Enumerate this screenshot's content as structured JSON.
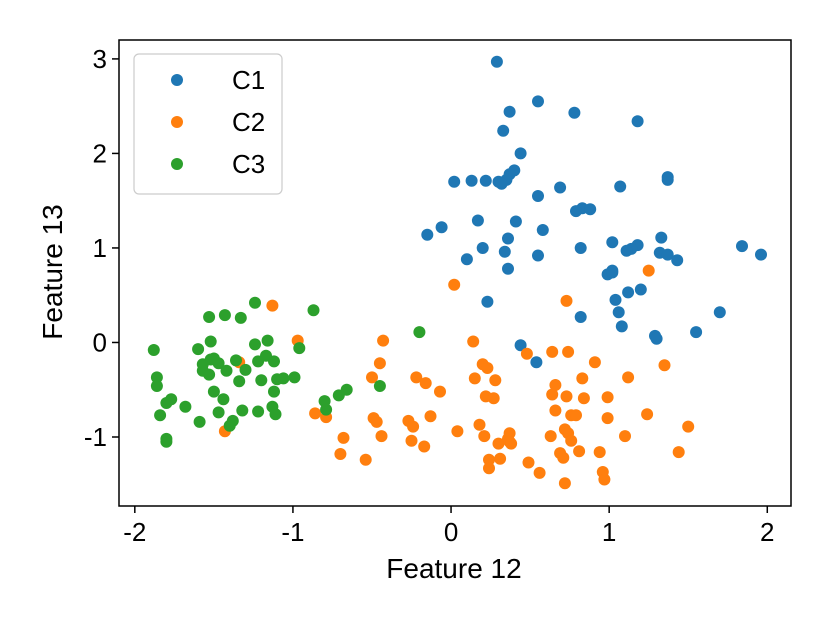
{
  "chart_data": {
    "type": "scatter",
    "xlabel": "Feature 12",
    "ylabel": "Feature 13",
    "xlim": [
      -2.1,
      2.15
    ],
    "ylim": [
      -1.73,
      3.2
    ],
    "xticks": [
      -2,
      -1,
      0,
      1,
      2
    ],
    "xtick_labels": [
      "-2",
      "-1",
      "0",
      "1",
      "2"
    ],
    "yticks": [
      -1,
      0,
      1,
      2,
      3
    ],
    "ytick_labels": [
      "-1",
      "0",
      "1",
      "2",
      "3"
    ],
    "grid": false,
    "legend_position": "top-left",
    "series": [
      {
        "name": "C1",
        "color": "#1f77b4",
        "points": [
          [
            0.29,
            2.97
          ],
          [
            0.55,
            2.55
          ],
          [
            0.37,
            2.44
          ],
          [
            0.78,
            2.43
          ],
          [
            1.18,
            2.34
          ],
          [
            0.33,
            2.24
          ],
          [
            0.44,
            2.0
          ],
          [
            0.4,
            1.82
          ],
          [
            0.37,
            1.78
          ],
          [
            0.35,
            1.72
          ],
          [
            0.3,
            1.7
          ],
          [
            0.32,
            1.68
          ],
          [
            0.02,
            1.7
          ],
          [
            0.13,
            1.71
          ],
          [
            0.22,
            1.71
          ],
          [
            0.55,
            1.55
          ],
          [
            0.69,
            1.64
          ],
          [
            1.07,
            1.65
          ],
          [
            1.37,
            1.75
          ],
          [
            1.37,
            1.72
          ],
          [
            0.83,
            1.42
          ],
          [
            0.88,
            1.41
          ],
          [
            0.79,
            1.39
          ],
          [
            0.17,
            1.29
          ],
          [
            0.41,
            1.28
          ],
          [
            -0.06,
            1.22
          ],
          [
            -0.15,
            1.14
          ],
          [
            0.58,
            1.19
          ],
          [
            0.36,
            1.1
          ],
          [
            0.2,
            1.0
          ],
          [
            1.02,
            1.06
          ],
          [
            1.18,
            1.03
          ],
          [
            1.14,
            0.99
          ],
          [
            1.11,
            0.97
          ],
          [
            0.82,
            1.0
          ],
          [
            1.33,
            1.11
          ],
          [
            1.32,
            0.95
          ],
          [
            1.37,
            0.93
          ],
          [
            1.43,
            0.87
          ],
          [
            1.84,
            1.02
          ],
          [
            1.96,
            0.93
          ],
          [
            0.1,
            0.88
          ],
          [
            0.34,
            0.96
          ],
          [
            0.55,
            0.92
          ],
          [
            0.36,
            0.78
          ],
          [
            1.02,
            0.76
          ],
          [
            0.99,
            0.72
          ],
          [
            1.02,
            0.74
          ],
          [
            1.12,
            0.53
          ],
          [
            1.2,
            0.56
          ],
          [
            1.04,
            0.45
          ],
          [
            1.06,
            0.32
          ],
          [
            0.82,
            0.27
          ],
          [
            1.08,
            0.17
          ],
          [
            1.7,
            0.32
          ],
          [
            1.55,
            0.11
          ],
          [
            1.29,
            0.07
          ],
          [
            1.3,
            0.04
          ],
          [
            0.23,
            0.43
          ],
          [
            0.44,
            -0.03
          ],
          [
            0.54,
            -0.21
          ]
        ]
      },
      {
        "name": "C2",
        "color": "#ff7f0e",
        "points": [
          [
            1.25,
            0.76
          ],
          [
            0.02,
            0.61
          ],
          [
            -1.13,
            0.39
          ],
          [
            0.73,
            0.44
          ],
          [
            -0.97,
            0.02
          ],
          [
            -0.43,
            0.02
          ],
          [
            0.14,
            0.01
          ],
          [
            0.48,
            -0.12
          ],
          [
            0.64,
            -0.1
          ],
          [
            0.74,
            -0.1
          ],
          [
            0.91,
            -0.21
          ],
          [
            1.35,
            -0.24
          ],
          [
            -0.45,
            -0.22
          ],
          [
            0.2,
            -0.23
          ],
          [
            0.23,
            -0.27
          ],
          [
            -1.34,
            -0.21
          ],
          [
            -0.5,
            -0.37
          ],
          [
            -0.22,
            -0.37
          ],
          [
            -0.16,
            -0.43
          ],
          [
            -0.07,
            -0.52
          ],
          [
            0.15,
            -0.38
          ],
          [
            0.28,
            -0.4
          ],
          [
            0.66,
            -0.45
          ],
          [
            0.83,
            -0.38
          ],
          [
            1.12,
            -0.37
          ],
          [
            0.22,
            -0.57
          ],
          [
            0.27,
            -0.59
          ],
          [
            0.64,
            -0.55
          ],
          [
            0.73,
            -0.57
          ],
          [
            0.84,
            -0.59
          ],
          [
            0.99,
            -0.58
          ],
          [
            -0.86,
            -0.75
          ],
          [
            -0.79,
            -0.79
          ],
          [
            -0.49,
            -0.8
          ],
          [
            -0.47,
            -0.84
          ],
          [
            -0.27,
            -0.83
          ],
          [
            -0.24,
            -0.89
          ],
          [
            -0.13,
            -0.78
          ],
          [
            0.04,
            -0.94
          ],
          [
            0.18,
            -0.87
          ],
          [
            0.21,
            -0.99
          ],
          [
            0.37,
            -0.96
          ],
          [
            0.66,
            -0.72
          ],
          [
            0.76,
            -0.77
          ],
          [
            0.79,
            -0.77
          ],
          [
            0.99,
            -0.8
          ],
          [
            1.24,
            -0.76
          ],
          [
            1.5,
            -0.89
          ],
          [
            -1.43,
            -0.94
          ],
          [
            -0.68,
            -1.01
          ],
          [
            -0.44,
            -0.99
          ],
          [
            -0.25,
            -1.04
          ],
          [
            -0.17,
            -1.1
          ],
          [
            0.3,
            -1.07
          ],
          [
            0.36,
            -1.02
          ],
          [
            0.37,
            -1.05
          ],
          [
            0.38,
            -1.07
          ],
          [
            0.63,
            -0.99
          ],
          [
            0.72,
            -0.92
          ],
          [
            0.74,
            -0.96
          ],
          [
            0.76,
            -1.04
          ],
          [
            0.81,
            -1.15
          ],
          [
            0.94,
            -1.16
          ],
          [
            1.1,
            -0.99
          ],
          [
            -0.7,
            -1.18
          ],
          [
            -0.54,
            -1.24
          ],
          [
            0.24,
            -1.24
          ],
          [
            0.24,
            -1.33
          ],
          [
            0.31,
            -1.23
          ],
          [
            0.49,
            -1.27
          ],
          [
            0.56,
            -1.38
          ],
          [
            0.69,
            -1.17
          ],
          [
            0.71,
            -1.22
          ],
          [
            0.72,
            -1.49
          ],
          [
            0.96,
            -1.37
          ],
          [
            0.97,
            -1.45
          ],
          [
            1.44,
            -1.16
          ]
        ]
      },
      {
        "name": "C3",
        "color": "#2ca02c",
        "points": [
          [
            -1.88,
            -0.08
          ],
          [
            -1.86,
            -0.37
          ],
          [
            -1.86,
            -0.46
          ],
          [
            -1.84,
            -0.77
          ],
          [
            -1.8,
            -0.64
          ],
          [
            -1.8,
            -1.02
          ],
          [
            -1.8,
            -1.05
          ],
          [
            -1.77,
            -0.6
          ],
          [
            -1.68,
            -0.68
          ],
          [
            -1.6,
            -0.07
          ],
          [
            -1.59,
            -0.84
          ],
          [
            -1.57,
            -0.23
          ],
          [
            -1.57,
            -0.3
          ],
          [
            -1.53,
            0.27
          ],
          [
            -1.53,
            -0.34
          ],
          [
            -1.52,
            -0.18
          ],
          [
            -1.52,
            0.01
          ],
          [
            -1.5,
            -0.17
          ],
          [
            -1.5,
            -0.52
          ],
          [
            -1.47,
            -0.74
          ],
          [
            -1.47,
            -0.22
          ],
          [
            -1.44,
            -0.6
          ],
          [
            -1.43,
            0.29
          ],
          [
            -1.42,
            -0.3
          ],
          [
            -1.4,
            -0.88
          ],
          [
            -1.38,
            -0.83
          ],
          [
            -1.36,
            -0.19
          ],
          [
            -1.34,
            -0.41
          ],
          [
            -1.33,
            0.26
          ],
          [
            -1.32,
            -0.72
          ],
          [
            -1.3,
            -0.29
          ],
          [
            -1.24,
            0.42
          ],
          [
            -1.24,
            -0.02
          ],
          [
            -1.22,
            -0.73
          ],
          [
            -1.22,
            -0.2
          ],
          [
            -1.2,
            -0.4
          ],
          [
            -1.17,
            -0.14
          ],
          [
            -1.16,
            0.02
          ],
          [
            -1.13,
            -0.68
          ],
          [
            -1.12,
            -0.2
          ],
          [
            -1.12,
            -0.52
          ],
          [
            -1.11,
            -0.76
          ],
          [
            -1.1,
            -0.39
          ],
          [
            -1.06,
            -0.38
          ],
          [
            -0.99,
            -0.37
          ],
          [
            -0.96,
            -0.06
          ],
          [
            -0.87,
            0.34
          ],
          [
            -0.8,
            -0.62
          ],
          [
            -0.79,
            -0.71
          ],
          [
            -0.71,
            -0.56
          ],
          [
            -0.66,
            -0.5
          ],
          [
            -0.45,
            -0.46
          ],
          [
            -0.2,
            0.11
          ]
        ]
      }
    ]
  }
}
